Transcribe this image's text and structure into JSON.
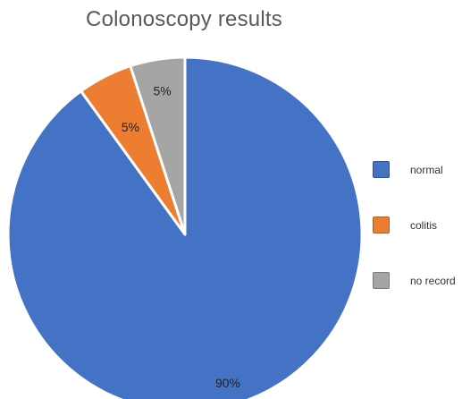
{
  "chart_data": {
    "type": "pie",
    "title": "Colonoscopy results",
    "categories": [
      "normal",
      "colitis",
      "no record"
    ],
    "values": [
      90,
      5,
      5
    ],
    "labels": [
      "90%",
      "5%",
      "5%"
    ],
    "colors": [
      "#4472C4",
      "#ED7D31",
      "#A5A5A5"
    ],
    "legend_position": "right"
  }
}
